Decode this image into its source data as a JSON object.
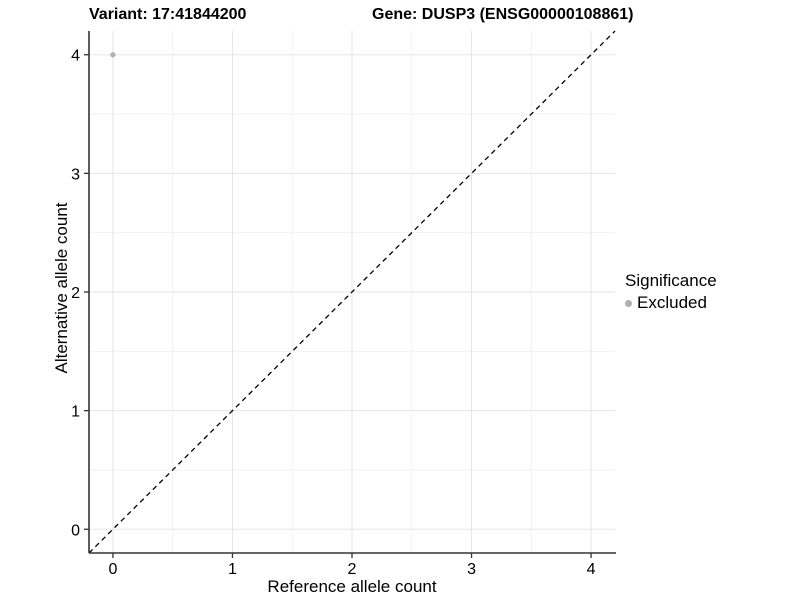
{
  "colors": {
    "background": "#ffffff",
    "grid_major": "#e5e5e5",
    "grid_minor": "#f2f2f2",
    "axis_line": "#333333",
    "tick_text": "#000000",
    "reference_line": "#000000",
    "excluded_point": "#b0b0b0"
  },
  "chart_data": {
    "type": "scatter",
    "titles": {
      "left": "Variant: 17:41844200",
      "right": "Gene: DUSP3 (ENSG00000108861)"
    },
    "xlabel": "Reference allele count",
    "ylabel": "Alternative allele count",
    "xlim": [
      -0.2,
      4.2
    ],
    "ylim": [
      -0.2,
      4.2
    ],
    "x_ticks": [
      0,
      1,
      2,
      3,
      4
    ],
    "y_ticks": [
      0,
      1,
      2,
      3,
      4
    ],
    "minor_ticks": [
      0.5,
      1.5,
      2.5,
      3.5
    ],
    "grid": true,
    "reference_line": {
      "description": "identity line y = x, dashed",
      "from": [
        -0.2,
        -0.2
      ],
      "to": [
        4.2,
        4.2
      ]
    },
    "series": [
      {
        "name": "Excluded",
        "color": "#b0b0b0",
        "points": [
          [
            0,
            4
          ]
        ]
      }
    ],
    "legend": {
      "title": "Significance",
      "position": "right",
      "items": [
        {
          "label": "Excluded",
          "color": "#b0b0b0"
        }
      ]
    }
  }
}
